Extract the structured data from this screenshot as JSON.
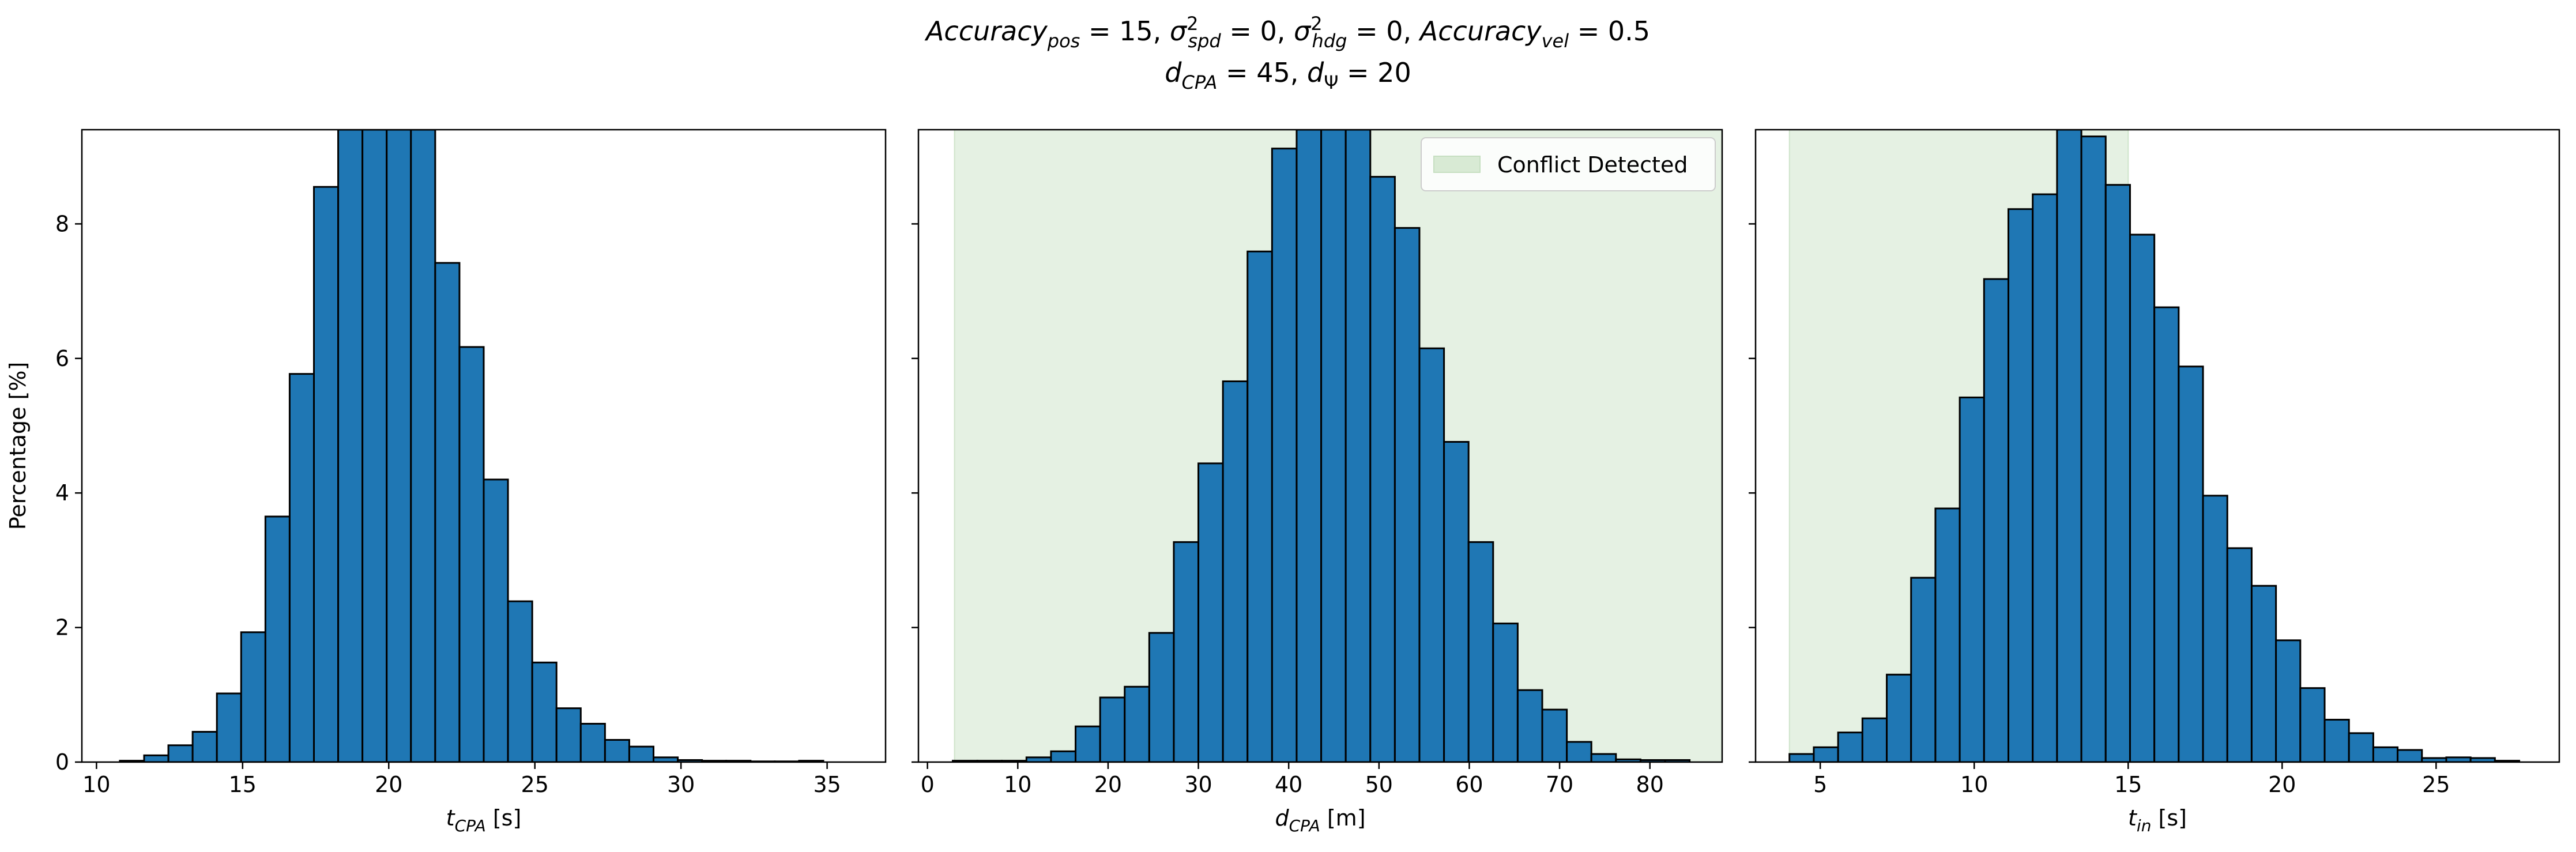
{
  "figure": {
    "title_line1": "Accuracy_pos = 15, σ²_spd = 0, σ²_hdg = 0, Accuracy_vel = 0.5",
    "title_line2": "d_CPA = 45, d_Ψ = 20"
  },
  "colors": {
    "bar_fill": "#1f77b4",
    "bar_edge": "#000000",
    "shade": "#e5f1e3",
    "shade_legend": "#d8ead4"
  },
  "chart_data": [
    {
      "type": "bar",
      "xlabel": "t_CPA [s]",
      "ylabel": "Percentage [%]",
      "xlim": [
        9.5,
        37
      ],
      "ylim": [
        0,
        9.4
      ],
      "xticks": [
        10,
        15,
        20,
        25,
        30,
        35
      ],
      "yticks": [
        0,
        2,
        4,
        6,
        8
      ],
      "grid": false,
      "bin_width": 0.83,
      "bin_start": 10.8,
      "values": [
        0.02,
        0.1,
        0.25,
        0.45,
        1.02,
        1.93,
        3.65,
        5.77,
        8.55,
        9.4,
        9.4,
        9.4,
        9.4,
        7.42,
        6.17,
        4.2,
        2.39,
        1.48,
        0.8,
        0.57,
        0.33,
        0.23,
        0.07,
        0.03,
        0.02,
        0.02,
        0.01,
        0.01,
        0.02
      ],
      "shade": null
    },
    {
      "type": "bar",
      "xlabel": "d_CPA [m]",
      "ylabel": "",
      "xlim": [
        -1,
        88
      ],
      "ylim": [
        0,
        9.4
      ],
      "xticks": [
        0,
        10,
        20,
        30,
        40,
        50,
        60,
        70,
        80
      ],
      "yticks": [
        0,
        2,
        4,
        6,
        8
      ],
      "grid": false,
      "bin_width": 2.72,
      "bin_start": 2.8,
      "values": [
        0.02,
        0.02,
        0.02,
        0.07,
        0.16,
        0.53,
        0.96,
        1.12,
        1.92,
        3.27,
        4.44,
        5.66,
        7.59,
        9.12,
        9.4,
        9.4,
        9.4,
        8.7,
        7.94,
        6.15,
        4.76,
        3.27,
        2.06,
        1.07,
        0.78,
        0.3,
        0.12,
        0.04,
        0.03,
        0.03
      ],
      "shade": {
        "from": 3,
        "to": 88
      },
      "legend": {
        "label": "Conflict Detected",
        "position": "top-right"
      }
    },
    {
      "type": "bar",
      "xlabel": "t_in [s]",
      "ylabel": "",
      "xlim": [
        2.9,
        29
      ],
      "ylim": [
        0,
        9.4
      ],
      "xticks": [
        5,
        10,
        15,
        20,
        25
      ],
      "yticks": [
        0,
        2,
        4,
        6,
        8
      ],
      "grid": false,
      "bin_width": 0.79,
      "bin_start": 4.0,
      "values": [
        0.12,
        0.22,
        0.44,
        0.65,
        1.3,
        2.74,
        3.77,
        5.42,
        7.18,
        8.22,
        8.44,
        9.4,
        9.3,
        8.58,
        7.84,
        6.76,
        5.88,
        3.96,
        3.18,
        2.62,
        1.81,
        1.1,
        0.63,
        0.43,
        0.22,
        0.18,
        0.06,
        0.07,
        0.06,
        0.02
      ],
      "shade": {
        "from": 4.0,
        "to": 15.0
      }
    }
  ]
}
